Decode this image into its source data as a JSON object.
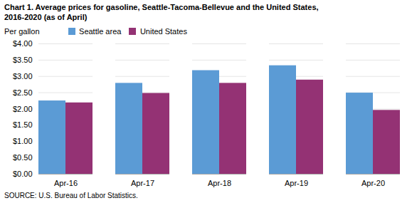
{
  "chart_data": {
    "type": "bar",
    "title": "Chart 1. Average prices for gasoline, Seattle-Tacoma-Bellevue and the United States,",
    "subtitle": "2016-2020  (as of April)",
    "ylabel": "Per gallon",
    "source": "SOURCE: U.S. Bureau of Labor Statistics.",
    "categories": [
      "Apr-16",
      "Apr-17",
      "Apr-18",
      "Apr-19",
      "Apr-20"
    ],
    "series": [
      {
        "name": "Seattle area",
        "color": "#5B9BD5",
        "values": [
          2.25,
          2.79,
          3.18,
          3.33,
          2.49
        ]
      },
      {
        "name": "United States",
        "color": "#943274",
        "values": [
          2.19,
          2.48,
          2.79,
          2.89,
          1.96
        ]
      }
    ],
    "ylim": [
      0.0,
      4.0
    ],
    "yticks": [
      {
        "value": 0.0,
        "label": "$0.00"
      },
      {
        "value": 0.5,
        "label": "$0.50"
      },
      {
        "value": 1.0,
        "label": "$1.00"
      },
      {
        "value": 1.5,
        "label": "$1.50"
      },
      {
        "value": 2.0,
        "label": "$2.00"
      },
      {
        "value": 2.5,
        "label": "$2.50"
      },
      {
        "value": 3.0,
        "label": "$3.00"
      },
      {
        "value": 3.5,
        "label": "$3.50"
      },
      {
        "value": 4.0,
        "label": "$4.00"
      }
    ],
    "grid": true,
    "legend": "top"
  }
}
